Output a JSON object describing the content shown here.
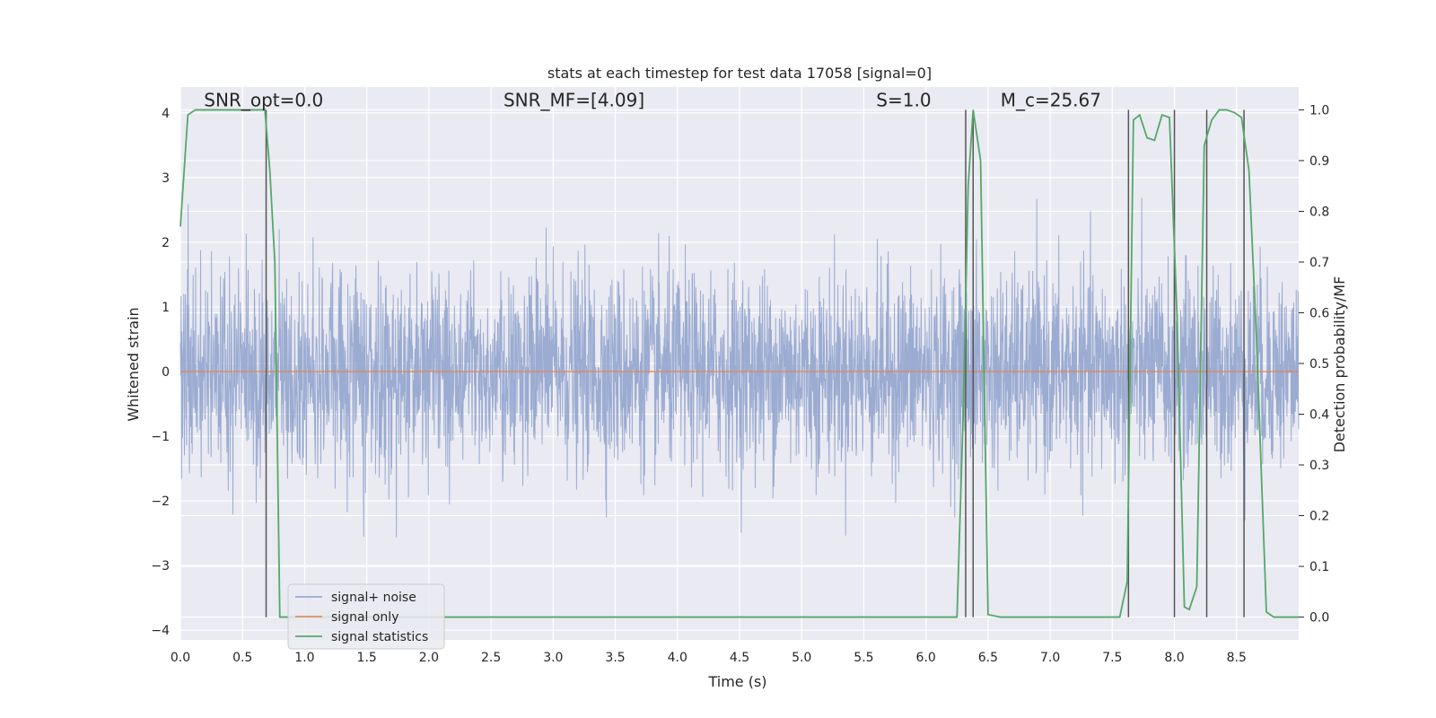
{
  "chart_data": {
    "type": "line",
    "title": "stats at each timestep for test data 17058 [signal=0]",
    "xlabel": "Time (s)",
    "ylabel": "Whitened strain",
    "y2label": "Detection probability/MF",
    "xlim": [
      0.0,
      9.0
    ],
    "ylim": [
      -4.15,
      4.4
    ],
    "y2lim": [
      -0.045,
      1.045
    ],
    "xticks": [
      "0.0",
      "0.5",
      "1.0",
      "1.5",
      "2.0",
      "2.5",
      "3.0",
      "3.5",
      "4.0",
      "4.5",
      "5.0",
      "5.5",
      "6.0",
      "6.5",
      "7.0",
      "7.5",
      "8.0",
      "8.5"
    ],
    "yticks": [
      "−4",
      "−3",
      "−2",
      "−1",
      "0",
      "1",
      "2",
      "3",
      "4"
    ],
    "y2ticks": [
      "0.0",
      "0.1",
      "0.2",
      "0.3",
      "0.4",
      "0.5",
      "0.6",
      "0.7",
      "0.8",
      "0.9",
      "1.0"
    ],
    "annotations": [
      {
        "text": "SNR_opt=0.0",
        "x": 0.19,
        "y": 4.1
      },
      {
        "text": "SNR_MF=[4.09]",
        "x": 2.6,
        "y": 4.1
      },
      {
        "text": "S=1.0",
        "x": 5.6,
        "y": 4.1
      },
      {
        "text": "M_c=25.67",
        "x": 6.6,
        "y": 4.1
      }
    ],
    "legend": {
      "placement": "lower-left",
      "entries": [
        "signal+ noise",
        "signal only",
        "signal statistics"
      ]
    },
    "grid": true,
    "colors": {
      "noise": "#8da0cb",
      "signal": "#dd8452",
      "stats": "#55a868",
      "vlines": "#555555",
      "background": "#eaeaf2"
    },
    "series": [
      {
        "name": "signal+ noise",
        "description_level": "noise",
        "noise_std": 0.75,
        "x_range": [
          0.0,
          9.0
        ]
      },
      {
        "name": "signal only",
        "values_constant": 0.0,
        "x_range": [
          0.0,
          9.0
        ]
      },
      {
        "name": "signal statistics",
        "axis": "right",
        "x": [
          0.0,
          0.06,
          0.12,
          0.2,
          0.3,
          0.4,
          0.5,
          0.6,
          0.68,
          0.72,
          0.76,
          0.8,
          0.85,
          1.0,
          2.0,
          3.0,
          4.0,
          5.0,
          6.0,
          6.25,
          6.3,
          6.34,
          6.38,
          6.44,
          6.5,
          6.6,
          7.0,
          7.5,
          7.56,
          7.62,
          7.67,
          7.72,
          7.78,
          7.84,
          7.9,
          7.96,
          8.02,
          8.08,
          8.12,
          8.18,
          8.24,
          8.3,
          8.36,
          8.42,
          8.48,
          8.54,
          8.6,
          8.66,
          8.74,
          8.8,
          8.9,
          9.0
        ],
        "values": [
          0.77,
          0.99,
          1.0,
          1.0,
          1.0,
          1.0,
          1.0,
          1.0,
          1.0,
          0.88,
          0.7,
          0.0,
          0.0,
          0.0,
          0.0,
          0.0,
          0.0,
          0.0,
          0.0,
          0.0,
          0.4,
          0.85,
          1.0,
          0.9,
          0.005,
          0.0,
          0.0,
          0.0,
          0.0,
          0.07,
          0.98,
          0.99,
          0.945,
          0.94,
          0.99,
          0.985,
          0.6,
          0.02,
          0.015,
          0.06,
          0.93,
          0.98,
          1.0,
          1.0,
          0.995,
          0.985,
          0.88,
          0.55,
          0.01,
          0.0,
          0.0,
          0.0
        ]
      }
    ],
    "vlines_x": [
      0.69,
      6.32,
      6.38,
      7.63,
      8.0,
      8.26,
      8.56
    ]
  }
}
